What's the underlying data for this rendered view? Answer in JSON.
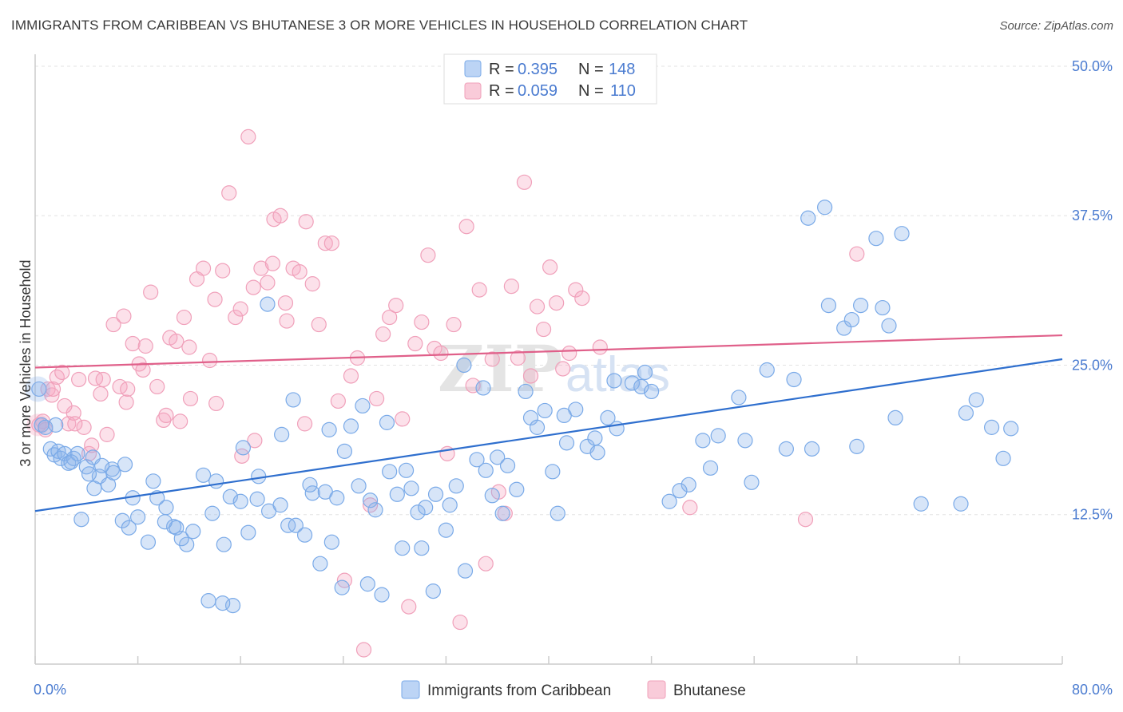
{
  "title": "IMMIGRANTS FROM CARIBBEAN VS BHUTANESE 3 OR MORE VEHICLES IN HOUSEHOLD CORRELATION CHART",
  "source": "Source: ZipAtlas.com",
  "watermark": {
    "zip": "ZIP",
    "atlas": "atlas"
  },
  "colors": {
    "blue": "#7aaae8",
    "blue_line": "#2f6fce",
    "pink": "#f0a0ba",
    "pink_line": "#e0608a",
    "tick": "#4a7bd0"
  },
  "legend": {
    "rows": [
      {
        "r_label": "R =",
        "r_value": "0.395",
        "n_label": "N =",
        "n_value": "148"
      },
      {
        "r_label": "R =",
        "r_value": "0.059",
        "n_label": "N =",
        "n_value": "110"
      }
    ]
  },
  "chart_data": {
    "type": "scatter",
    "title": "IMMIGRANTS FROM CARIBBEAN VS BHUTANESE 3 OR MORE VEHICLES IN HOUSEHOLD CORRELATION CHART",
    "xlabel": "",
    "ylabel": "3 or more Vehicles in Household",
    "xlim": [
      0,
      80
    ],
    "ylim": [
      0,
      51
    ],
    "x_tick_labels": [
      "0.0%",
      "80.0%"
    ],
    "y_tick_values": [
      12.5,
      25.0,
      37.5,
      50.0
    ],
    "y_tick_labels": [
      "12.5%",
      "25.0%",
      "37.5%",
      "50.0%"
    ],
    "grid": true,
    "legend_position": "top-center",
    "series": [
      {
        "name": "Immigrants from Caribbean",
        "color": "#7aaae8",
        "trend": {
          "x": [
            0,
            80
          ],
          "y": [
            12.8,
            25.5
          ]
        },
        "points": [
          [
            0.3,
            23
          ],
          [
            0.5,
            20
          ],
          [
            0.8,
            19.8
          ],
          [
            1.2,
            18
          ],
          [
            1.5,
            17.5
          ],
          [
            1.8,
            17.8
          ],
          [
            2.0,
            17.2
          ],
          [
            2.3,
            17.6
          ],
          [
            2.6,
            16.8
          ],
          [
            3.0,
            17.2
          ],
          [
            3.3,
            17.6
          ],
          [
            4.0,
            16.5
          ],
          [
            4.5,
            17.3
          ],
          [
            5.0,
            15.7
          ],
          [
            6.0,
            16.3
          ],
          [
            7.0,
            16.7
          ],
          [
            4.2,
            15.9
          ],
          [
            5.7,
            15.0
          ],
          [
            6.8,
            12
          ],
          [
            7.3,
            11.4
          ],
          [
            8.0,
            12.3
          ],
          [
            8.8,
            10.2
          ],
          [
            9.5,
            13.9
          ],
          [
            10.2,
            13.1
          ],
          [
            10.8,
            11.5
          ],
          [
            11.0,
            11.4
          ],
          [
            11.8,
            10.0
          ],
          [
            12.3,
            11.1
          ],
          [
            13.1,
            15.8
          ],
          [
            13.8,
            12.6
          ],
          [
            14.1,
            15.3
          ],
          [
            14.7,
            10.0
          ],
          [
            15.2,
            14.0
          ],
          [
            16.0,
            13.6
          ],
          [
            16.6,
            11.0
          ],
          [
            17.4,
            15.7
          ],
          [
            18.2,
            12.8
          ],
          [
            19.1,
            13.3
          ],
          [
            19.7,
            11.6
          ],
          [
            20.3,
            11.6
          ],
          [
            21.0,
            10.8
          ],
          [
            21.6,
            14.3
          ],
          [
            22.2,
            8.4
          ],
          [
            22.6,
            14.4
          ],
          [
            23.1,
            10.2
          ],
          [
            23.5,
            13.9
          ],
          [
            23.9,
            6.4
          ],
          [
            24.6,
            19.9
          ],
          [
            25.2,
            14.9
          ],
          [
            25.9,
            6.7
          ],
          [
            26.5,
            12.9
          ],
          [
            27.0,
            5.8
          ],
          [
            27.6,
            16.1
          ],
          [
            28.2,
            14.2
          ],
          [
            28.6,
            9.7
          ],
          [
            29.3,
            14.7
          ],
          [
            29.8,
            12.7
          ],
          [
            30.4,
            13.1
          ],
          [
            31.0,
            6.1
          ],
          [
            32.0,
            11.2
          ],
          [
            32.8,
            14.9
          ],
          [
            33.5,
            7.8
          ],
          [
            34.4,
            17.1
          ],
          [
            35.1,
            16.2
          ],
          [
            35.6,
            14.1
          ],
          [
            36.0,
            17.3
          ],
          [
            36.8,
            16.6
          ],
          [
            37.5,
            14.6
          ],
          [
            38.6,
            20.6
          ],
          [
            39.1,
            19.8
          ],
          [
            40.3,
            16.1
          ],
          [
            40.7,
            12.6
          ],
          [
            41.4,
            18.5
          ],
          [
            42.1,
            21.3
          ],
          [
            43.0,
            18.2
          ],
          [
            43.8,
            17.7
          ],
          [
            44.6,
            20.6
          ],
          [
            45.3,
            19.7
          ],
          [
            46.5,
            23.5
          ],
          [
            47.2,
            23.2
          ],
          [
            47.5,
            24.4
          ],
          [
            48.0,
            22.8
          ],
          [
            52.0,
            18.7
          ],
          [
            53.2,
            19.1
          ],
          [
            55.3,
            18.7
          ],
          [
            55.8,
            15.2
          ],
          [
            58.5,
            18.0
          ],
          [
            59.1,
            23.8
          ],
          [
            60.2,
            37.3
          ],
          [
            61.5,
            38.2
          ],
          [
            61.8,
            30.0
          ],
          [
            63.0,
            28.1
          ],
          [
            63.6,
            28.8
          ],
          [
            64.3,
            30.0
          ],
          [
            65.5,
            35.6
          ],
          [
            66.0,
            29.8
          ],
          [
            67.5,
            36.0
          ],
          [
            69.0,
            13.4
          ],
          [
            72.1,
            13.4
          ],
          [
            73.3,
            22.1
          ],
          [
            74.5,
            19.8
          ],
          [
            75.4,
            17.2
          ],
          [
            76.0,
            19.7
          ],
          [
            72.5,
            21.0
          ],
          [
            67.0,
            20.6
          ],
          [
            66.5,
            28.3
          ],
          [
            64.0,
            18.2
          ],
          [
            60.5,
            18.0
          ],
          [
            57.0,
            24.6
          ],
          [
            54.8,
            22.3
          ],
          [
            52.6,
            16.4
          ],
          [
            50.9,
            15.0
          ],
          [
            50.2,
            14.5
          ],
          [
            49.4,
            13.6
          ],
          [
            45.1,
            23.7
          ],
          [
            43.6,
            18.9
          ],
          [
            41.2,
            20.8
          ],
          [
            39.7,
            21.2
          ],
          [
            38.2,
            22.8
          ],
          [
            36.4,
            12.6
          ],
          [
            34.9,
            23.1
          ],
          [
            33.4,
            25.0
          ],
          [
            32.3,
            13.3
          ],
          [
            31.2,
            14.2
          ],
          [
            30.1,
            9.7
          ],
          [
            28.9,
            16.2
          ],
          [
            27.4,
            20.2
          ],
          [
            26.1,
            13.7
          ],
          [
            25.5,
            21.6
          ],
          [
            24.1,
            17.8
          ],
          [
            22.9,
            19.6
          ],
          [
            21.4,
            15.0
          ],
          [
            20.1,
            22.1
          ],
          [
            19.2,
            19.2
          ],
          [
            18.1,
            30.1
          ],
          [
            17.3,
            13.8
          ],
          [
            16.2,
            18.1
          ],
          [
            15.4,
            4.9
          ],
          [
            14.6,
            5.1
          ],
          [
            13.5,
            5.3
          ],
          [
            11.4,
            10.5
          ],
          [
            10.1,
            11.9
          ],
          [
            9.2,
            15.3
          ],
          [
            7.6,
            13.9
          ],
          [
            6.1,
            16.0
          ],
          [
            5.2,
            16.6
          ],
          [
            4.6,
            14.7
          ],
          [
            3.6,
            12.1
          ],
          [
            2.8,
            16.9
          ],
          [
            1.6,
            20.0
          ]
        ]
      },
      {
        "name": "Bhutanese",
        "color": "#f0a0ba",
        "trend": {
          "x": [
            0,
            80
          ],
          "y": [
            24.8,
            27.5
          ]
        },
        "points": [
          [
            0.3,
            20
          ],
          [
            0.6,
            20.3
          ],
          [
            1.0,
            23
          ],
          [
            1.3,
            22.5
          ],
          [
            1.7,
            24
          ],
          [
            2.1,
            24.4
          ],
          [
            2.6,
            20.1
          ],
          [
            3.0,
            21
          ],
          [
            3.4,
            23.8
          ],
          [
            3.8,
            19.8
          ],
          [
            4.2,
            17.6
          ],
          [
            4.7,
            23.9
          ],
          [
            5.1,
            22.6
          ],
          [
            5.6,
            19.2
          ],
          [
            6.1,
            28.4
          ],
          [
            6.6,
            23.2
          ],
          [
            7.1,
            21.9
          ],
          [
            7.6,
            26.8
          ],
          [
            8.1,
            25.1
          ],
          [
            8.6,
            26.6
          ],
          [
            9.0,
            31.1
          ],
          [
            9.5,
            23.2
          ],
          [
            10.0,
            20.4
          ],
          [
            10.5,
            27.3
          ],
          [
            11.0,
            27.0
          ],
          [
            11.6,
            29.0
          ],
          [
            12.1,
            22.2
          ],
          [
            12.6,
            32.2
          ],
          [
            13.1,
            33.1
          ],
          [
            13.6,
            25.4
          ],
          [
            14.1,
            21.8
          ],
          [
            14.6,
            32.9
          ],
          [
            15.1,
            39.4
          ],
          [
            15.6,
            29.0
          ],
          [
            16.1,
            17.4
          ],
          [
            16.6,
            44.1
          ],
          [
            17.1,
            18.7
          ],
          [
            17.6,
            33.1
          ],
          [
            18.1,
            31.9
          ],
          [
            18.6,
            37.2
          ],
          [
            19.1,
            37.5
          ],
          [
            19.6,
            28.7
          ],
          [
            20.1,
            33.1
          ],
          [
            20.6,
            32.8
          ],
          [
            21.1,
            37.0
          ],
          [
            21.6,
            31.8
          ],
          [
            22.1,
            28.4
          ],
          [
            22.6,
            35.2
          ],
          [
            23.1,
            35.2
          ],
          [
            23.6,
            22.0
          ],
          [
            24.1,
            7.0
          ],
          [
            24.6,
            24.1
          ],
          [
            25.1,
            25.6
          ],
          [
            25.6,
            1.2
          ],
          [
            26.1,
            13.3
          ],
          [
            26.6,
            22.2
          ],
          [
            27.1,
            27.6
          ],
          [
            27.6,
            29.0
          ],
          [
            28.1,
            30.0
          ],
          [
            28.6,
            20.5
          ],
          [
            29.1,
            4.8
          ],
          [
            29.6,
            26.8
          ],
          [
            30.1,
            28.6
          ],
          [
            30.6,
            34.2
          ],
          [
            31.1,
            26.4
          ],
          [
            31.6,
            26.0
          ],
          [
            32.1,
            17.6
          ],
          [
            32.6,
            28.4
          ],
          [
            33.1,
            3.5
          ],
          [
            33.6,
            36.6
          ],
          [
            34.1,
            23.3
          ],
          [
            34.6,
            31.3
          ],
          [
            35.1,
            8.4
          ],
          [
            35.6,
            25.5
          ],
          [
            36.1,
            14.4
          ],
          [
            36.6,
            12.6
          ],
          [
            37.1,
            31.6
          ],
          [
            37.6,
            25.6
          ],
          [
            38.1,
            40.3
          ],
          [
            38.6,
            24.1
          ],
          [
            39.1,
            29.9
          ],
          [
            39.6,
            28.0
          ],
          [
            40.1,
            33.2
          ],
          [
            40.6,
            30.2
          ],
          [
            41.1,
            24.7
          ],
          [
            41.6,
            26.0
          ],
          [
            42.1,
            31.3
          ],
          [
            42.6,
            30.6
          ],
          [
            44.0,
            26.5
          ],
          [
            51.0,
            13.1
          ],
          [
            60.0,
            12.1
          ],
          [
            64.0,
            34.3
          ],
          [
            21.0,
            20.1
          ],
          [
            19.5,
            30.2
          ],
          [
            18.5,
            33.5
          ],
          [
            17.0,
            31.5
          ],
          [
            16.0,
            29.7
          ],
          [
            14.0,
            30.5
          ],
          [
            12.0,
            26.5
          ],
          [
            10.2,
            20.8
          ],
          [
            8.4,
            24.6
          ],
          [
            7.2,
            23.0
          ],
          [
            5.3,
            23.8
          ],
          [
            4.4,
            18.3
          ],
          [
            3.1,
            20.1
          ],
          [
            2.3,
            21.6
          ],
          [
            1.4,
            23.0
          ],
          [
            0.8,
            19.6
          ],
          [
            6.9,
            29.1
          ],
          [
            11.3,
            20.3
          ]
        ]
      }
    ]
  },
  "bottom_legend": {
    "items": [
      {
        "label": "Immigrants from Caribbean"
      },
      {
        "label": "Bhutanese"
      }
    ]
  }
}
